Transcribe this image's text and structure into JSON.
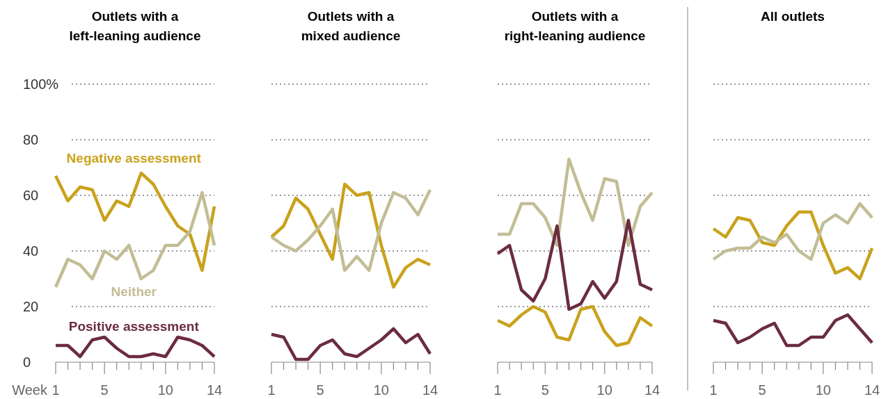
{
  "chart_data": [
    {
      "type": "line",
      "title": "Outlets with a\nleft-leaning audience",
      "xlabel": "Week",
      "x": [
        1,
        2,
        3,
        4,
        5,
        6,
        7,
        8,
        9,
        10,
        11,
        12,
        13,
        14
      ],
      "xlim": [
        1,
        14
      ],
      "xticks": [
        1,
        {
          "value": 2,
          "label": null
        },
        {
          "value": 3,
          "label": null
        },
        {
          "value": 4,
          "label": null
        },
        5,
        {
          "value": 6,
          "label": null
        },
        {
          "value": 7,
          "label": null
        },
        {
          "value": 8,
          "label": null
        },
        {
          "value": 9,
          "label": null
        },
        10,
        {
          "value": 11,
          "label": null
        },
        {
          "value": 12,
          "label": null
        },
        {
          "value": 13,
          "label": null
        },
        14
      ],
      "ylim": [
        0,
        100
      ],
      "yticks": [
        0,
        20,
        40,
        60,
        80,
        {
          "value": 100,
          "label": "100%"
        }
      ],
      "grid": "y",
      "series": [
        {
          "name": "Negative assessment",
          "color": "#c9a21d",
          "values": [
            67,
            58,
            63,
            62,
            51,
            58,
            56,
            68,
            64,
            56,
            49,
            46,
            33,
            56
          ]
        },
        {
          "name": "Neither",
          "color": "#c2bd95",
          "values": [
            27,
            37,
            35,
            30,
            40,
            37,
            42,
            30,
            33,
            42,
            42,
            47,
            61,
            42
          ]
        },
        {
          "name": "Positive assessment",
          "color": "#6b2c40",
          "values": [
            6,
            6,
            2,
            8,
            9,
            5,
            2,
            2,
            3,
            2,
            9,
            8,
            6,
            2
          ]
        }
      ]
    },
    {
      "type": "line",
      "title": "Outlets with a\nmixed audience",
      "x": [
        1,
        2,
        3,
        4,
        5,
        6,
        7,
        8,
        9,
        10,
        11,
        12,
        13,
        14
      ],
      "xlim": [
        1,
        14
      ],
      "xticks": [
        1,
        {
          "value": 2,
          "label": null
        },
        {
          "value": 3,
          "label": null
        },
        {
          "value": 4,
          "label": null
        },
        5,
        {
          "value": 6,
          "label": null
        },
        {
          "value": 7,
          "label": null
        },
        {
          "value": 8,
          "label": null
        },
        {
          "value": 9,
          "label": null
        },
        10,
        {
          "value": 11,
          "label": null
        },
        {
          "value": 12,
          "label": null
        },
        {
          "value": 13,
          "label": null
        },
        14
      ],
      "ylim": [
        0,
        100
      ],
      "yticks": [
        0,
        20,
        40,
        60,
        80,
        100
      ],
      "tick_labels": "x",
      "grid": "y",
      "series": [
        {
          "color": "#c9a21d",
          "values": [
            45,
            49,
            59,
            55,
            46,
            37,
            64,
            60,
            61,
            42,
            27,
            34,
            37,
            35
          ]
        },
        {
          "color": "#c2bd95",
          "values": [
            45,
            42,
            40,
            44,
            49,
            55,
            33,
            38,
            33,
            50,
            61,
            59,
            53,
            62
          ]
        },
        {
          "color": "#6b2c40",
          "values": [
            10,
            9,
            1,
            1,
            6,
            8,
            3,
            2,
            5,
            8,
            12,
            7,
            10,
            3
          ]
        }
      ]
    },
    {
      "type": "line",
      "title": "Outlets with a\nright-leaning audience",
      "x": [
        1,
        2,
        3,
        4,
        5,
        6,
        7,
        8,
        9,
        10,
        11,
        12,
        13,
        14
      ],
      "xlim": [
        1,
        14
      ],
      "xticks": [
        1,
        {
          "value": 2,
          "label": null
        },
        {
          "value": 3,
          "label": null
        },
        {
          "value": 4,
          "label": null
        },
        5,
        {
          "value": 6,
          "label": null
        },
        {
          "value": 7,
          "label": null
        },
        {
          "value": 8,
          "label": null
        },
        {
          "value": 9,
          "label": null
        },
        10,
        {
          "value": 11,
          "label": null
        },
        {
          "value": 12,
          "label": null
        },
        {
          "value": 13,
          "label": null
        },
        14
      ],
      "ylim": [
        0,
        100
      ],
      "yticks": [
        0,
        20,
        40,
        60,
        80,
        100
      ],
      "tick_labels": "x",
      "grid": "y",
      "series": [
        {
          "color": "#c9a21d",
          "values": [
            15,
            13,
            17,
            20,
            18,
            9,
            8,
            19,
            20,
            11,
            6,
            7,
            16,
            13
          ]
        },
        {
          "color": "#c2bd95",
          "values": [
            46,
            46,
            57,
            57,
            52,
            42,
            73,
            61,
            51,
            66,
            65,
            42,
            56,
            61
          ]
        },
        {
          "color": "#6b2c40",
          "values": [
            39,
            42,
            26,
            22,
            30,
            49,
            19,
            21,
            29,
            23,
            29,
            51,
            28,
            26
          ]
        }
      ]
    },
    {
      "type": "line",
      "title": "All outlets",
      "x": [
        1,
        2,
        3,
        4,
        5,
        6,
        7,
        8,
        9,
        10,
        11,
        12,
        13,
        14
      ],
      "xlim": [
        1,
        14
      ],
      "xticks": [
        1,
        {
          "value": 2,
          "label": null
        },
        {
          "value": 3,
          "label": null
        },
        {
          "value": 4,
          "label": null
        },
        5,
        {
          "value": 6,
          "label": null
        },
        {
          "value": 7,
          "label": null
        },
        {
          "value": 8,
          "label": null
        },
        {
          "value": 9,
          "label": null
        },
        10,
        {
          "value": 11,
          "label": null
        },
        {
          "value": 12,
          "label": null
        },
        {
          "value": 13,
          "label": null
        },
        14
      ],
      "ylim": [
        0,
        100
      ],
      "yticks": [
        0,
        20,
        40,
        60,
        80,
        100
      ],
      "tick_labels": "x",
      "grid": "y",
      "series": [
        {
          "color": "#c9a21d",
          "values": [
            48,
            45,
            52,
            51,
            43,
            42,
            49,
            54,
            54,
            42,
            32,
            34,
            30,
            41
          ]
        },
        {
          "color": "#c2bd95",
          "values": [
            37,
            40,
            41,
            41,
            45,
            43,
            46,
            40,
            37,
            50,
            53,
            50,
            57,
            52
          ]
        },
        {
          "color": "#6b2c40",
          "values": [
            15,
            14,
            7,
            9,
            12,
            14,
            6,
            6,
            9,
            9,
            15,
            17,
            12,
            7
          ]
        }
      ]
    }
  ]
}
